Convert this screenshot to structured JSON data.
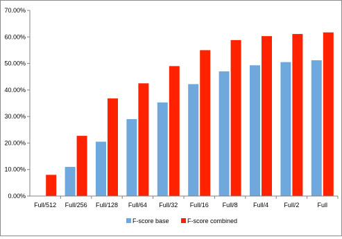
{
  "chart_data": {
    "type": "bar",
    "title": "",
    "xlabel": "",
    "ylabel": "",
    "categories": [
      "Full/512",
      "Full/256",
      "Full/128",
      "Full/64",
      "Full/32",
      "Full/16",
      "Full/8",
      "Full/4",
      "Full/2",
      "Full"
    ],
    "series": [
      {
        "name": "F-score base",
        "color": "#6fa8dc",
        "values": [
          null,
          11.0,
          20.5,
          29.0,
          35.3,
          42.2,
          47.0,
          49.3,
          50.5,
          51.2
        ]
      },
      {
        "name": "F-score combined",
        "color": "#ff2200",
        "values": [
          8.0,
          22.7,
          36.8,
          42.5,
          49.0,
          55.0,
          58.8,
          60.3,
          61.1,
          61.7
        ]
      }
    ],
    "ylim": [
      0,
      70
    ],
    "yticks": [
      0,
      10,
      20,
      30,
      40,
      50,
      60,
      70
    ],
    "ytick_labels": [
      "0.00%",
      "10.00%",
      "20.00%",
      "30.00%",
      "40.00%",
      "50.00%",
      "60.00%",
      "70.00%"
    ],
    "grid": false,
    "legend_position": "bottom"
  }
}
